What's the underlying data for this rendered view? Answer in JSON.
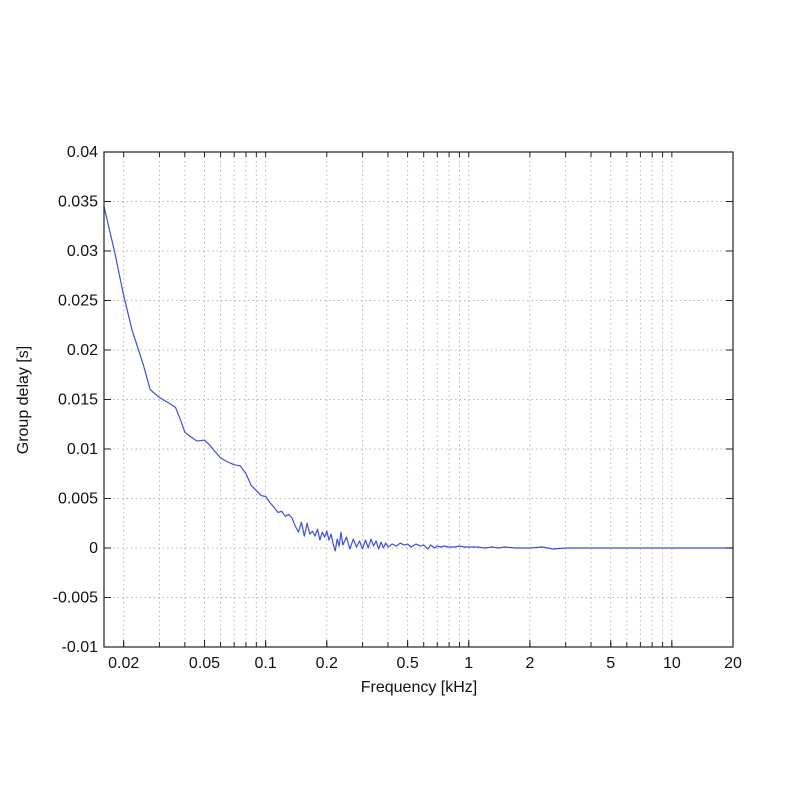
{
  "chart_data": {
    "type": "line",
    "title": "",
    "xlabel": "Frequency [kHz]",
    "ylabel": "Group delay [s]",
    "xscale": "log",
    "xlim": [
      0.016,
      20
    ],
    "ylim": [
      -0.01,
      0.04
    ],
    "grid": true,
    "xticks": [
      {
        "value": 0.02,
        "label": "0.02"
      },
      {
        "value": 0.05,
        "label": "0.05"
      },
      {
        "value": 0.1,
        "label": "0.1"
      },
      {
        "value": 0.2,
        "label": "0.2"
      },
      {
        "value": 0.5,
        "label": "0.5"
      },
      {
        "value": 1,
        "label": "1"
      },
      {
        "value": 2,
        "label": "2"
      },
      {
        "value": 5,
        "label": "5"
      },
      {
        "value": 10,
        "label": "10"
      },
      {
        "value": 20,
        "label": "20"
      }
    ],
    "yticks": [
      {
        "value": 0.04,
        "label": "0.04"
      },
      {
        "value": 0.035,
        "label": "0.035"
      },
      {
        "value": 0.03,
        "label": "0.03"
      },
      {
        "value": 0.025,
        "label": "0.025"
      },
      {
        "value": 0.02,
        "label": "0.02"
      },
      {
        "value": 0.015,
        "label": "0.015"
      },
      {
        "value": 0.01,
        "label": "0.01"
      },
      {
        "value": 0.005,
        "label": "0.005"
      },
      {
        "value": 0,
        "label": "0"
      },
      {
        "value": -0.005,
        "label": "-0.005"
      },
      {
        "value": -0.01,
        "label": "-0.01"
      }
    ],
    "series": [
      {
        "color": "#3f4fd8",
        "x": [
          0.016,
          0.018,
          0.02,
          0.022,
          0.025,
          0.027,
          0.03,
          0.033,
          0.036,
          0.038,
          0.04,
          0.043,
          0.046,
          0.05,
          0.053,
          0.056,
          0.06,
          0.065,
          0.07,
          0.075,
          0.08,
          0.085,
          0.09,
          0.095,
          0.1,
          0.105,
          0.11,
          0.115,
          0.12,
          0.125,
          0.13,
          0.135,
          0.14,
          0.145,
          0.15,
          0.155,
          0.16,
          0.165,
          0.17,
          0.175,
          0.18,
          0.185,
          0.19,
          0.195,
          0.2,
          0.205,
          0.21,
          0.215,
          0.22,
          0.225,
          0.23,
          0.235,
          0.24,
          0.25,
          0.26,
          0.27,
          0.28,
          0.29,
          0.3,
          0.31,
          0.32,
          0.33,
          0.34,
          0.35,
          0.36,
          0.37,
          0.38,
          0.39,
          0.4,
          0.42,
          0.44,
          0.46,
          0.48,
          0.5,
          0.52,
          0.55,
          0.58,
          0.6,
          0.63,
          0.65,
          0.68,
          0.7,
          0.73,
          0.75,
          0.8,
          0.85,
          0.9,
          0.95,
          1.0,
          1.1,
          1.2,
          1.3,
          1.4,
          1.5,
          1.7,
          2.0,
          2.3,
          2.6,
          3.0,
          3.5,
          4.0,
          5.0,
          6.0,
          8.0,
          10.0,
          14.0,
          20.0
        ],
        "y": [
          0.0345,
          0.03,
          0.0255,
          0.022,
          0.0185,
          0.016,
          0.0152,
          0.0147,
          0.0142,
          0.013,
          0.0117,
          0.0112,
          0.0108,
          0.0109,
          0.0104,
          0.0098,
          0.0091,
          0.0087,
          0.0084,
          0.0083,
          0.0075,
          0.0063,
          0.0058,
          0.0053,
          0.0052,
          0.0046,
          0.0041,
          0.0036,
          0.0037,
          0.0032,
          0.0034,
          0.003,
          0.0022,
          0.0016,
          0.0026,
          0.0012,
          0.0025,
          0.0014,
          0.0017,
          0.0012,
          0.0019,
          0.0008,
          0.0016,
          0.0011,
          0.0017,
          0.0008,
          0.0014,
          0.0004,
          -0.0003,
          0.0009,
          0.0002,
          0.0016,
          0.0003,
          0.0011,
          -0.0001,
          0.0009,
          0.0001,
          0.0007,
          -0.0001,
          0.0008,
          0.0,
          0.0009,
          0.0002,
          0.0007,
          -0.0001,
          0.0006,
          0.0,
          0.0005,
          0.0001,
          0.0004,
          0.0002,
          0.0005,
          0.0003,
          0.0004,
          0.0001,
          0.0004,
          0.0002,
          0.0003,
          -0.0001,
          0.0003,
          0.0,
          0.0002,
          0.0001,
          0.0002,
          0.0001,
          0.0001,
          0.0002,
          0.0001,
          0.0001,
          0.0001,
          0.0,
          0.0001,
          0.0,
          0.0001,
          0.0,
          0.0,
          0.0001,
          -0.0001,
          0.0,
          0.0,
          0.0,
          0.0,
          0.0,
          0.0,
          0.0,
          0.0,
          0.0
        ]
      }
    ]
  }
}
